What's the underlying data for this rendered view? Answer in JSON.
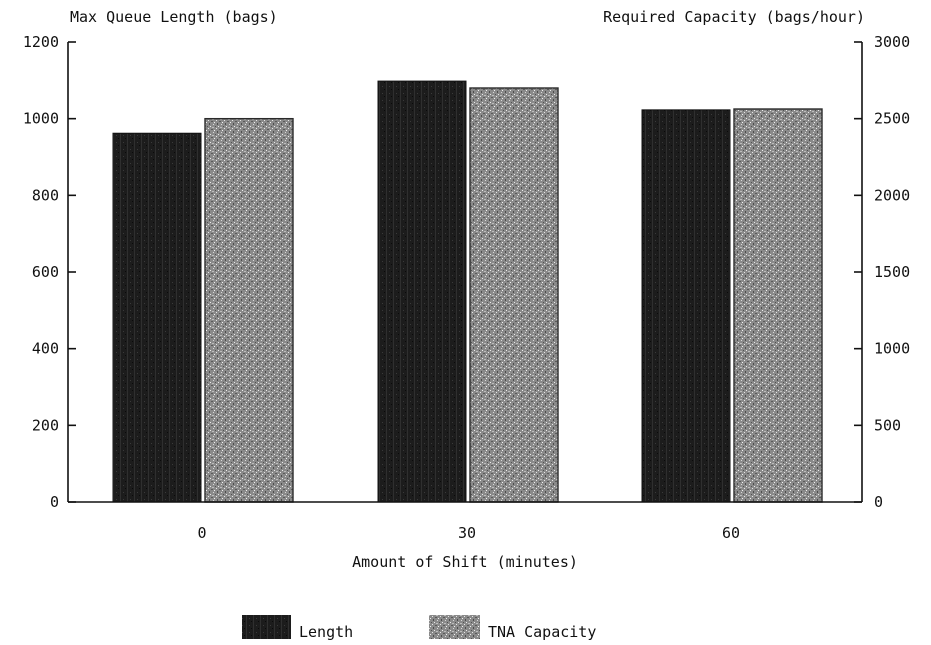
{
  "chart_data": {
    "type": "bar",
    "categories": [
      "0",
      "30",
      "60"
    ],
    "xlabel": "Amount of Shift (minutes)",
    "ylabel_left": "Max Queue Length (bags)",
    "ylabel_right": "Required Capacity (bags/hour)",
    "ylim_left": [
      0,
      1200
    ],
    "ylim_right": [
      0,
      3000
    ],
    "yticks_left": [
      "0",
      "200",
      "400",
      "600",
      "800",
      "1000",
      "1200"
    ],
    "yticks_right": [
      "0",
      "500",
      "1000",
      "1500",
      "2000",
      "2500",
      "3000"
    ],
    "grid": false,
    "legend_position": "bottom",
    "series": [
      {
        "name": "Length",
        "axis": "left",
        "values": [
          962,
          1098,
          1023
        ],
        "color": "#1a1a1a"
      },
      {
        "name": "TNA Capacity",
        "axis": "right",
        "values": [
          2500,
          2700,
          2563
        ],
        "color": "#8e8e8e"
      }
    ]
  }
}
